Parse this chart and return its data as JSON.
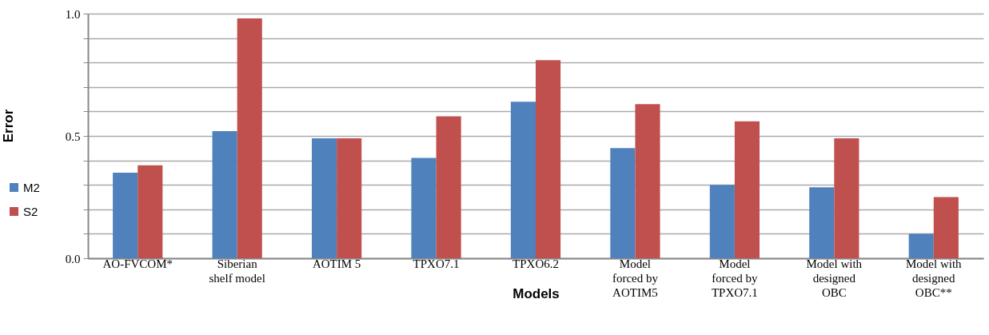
{
  "chart_data": {
    "type": "bar",
    "xlabel": "Models",
    "ylabel": "Error",
    "categories": [
      "AO-FVCOM*",
      "Siberian shelf model",
      "AOTIM 5",
      "TPXO7.1",
      "TPXO6.2",
      "Model forced by AOTIM5",
      "Model forced by TPXO7.1",
      "Model with designed OBC",
      "Model with designed OBC**"
    ],
    "series": [
      {
        "name": "M2",
        "color": "#4f81bd",
        "values": [
          0.35,
          0.52,
          0.49,
          0.41,
          0.64,
          0.45,
          0.3,
          0.29,
          0.1
        ]
      },
      {
        "name": "S2",
        "color": "#c0504d",
        "values": [
          0.38,
          0.98,
          0.49,
          0.58,
          0.81,
          0.63,
          0.56,
          0.49,
          0.25
        ]
      }
    ],
    "ylim": [
      0,
      1
    ],
    "yticks": [
      {
        "value": 0,
        "label": "0.0"
      },
      {
        "value": 0.1,
        "label": null
      },
      {
        "value": 0.2,
        "label": null
      },
      {
        "value": 0.3,
        "label": null
      },
      {
        "value": 0.4,
        "label": null
      },
      0.5,
      {
        "value": 0.6,
        "label": null
      },
      {
        "value": 0.7,
        "label": null
      },
      {
        "value": 0.8,
        "label": null
      },
      {
        "value": 0.9,
        "label": null
      },
      {
        "value": 1,
        "label": "1.0"
      }
    ],
    "grid": "y",
    "legend": "left"
  }
}
